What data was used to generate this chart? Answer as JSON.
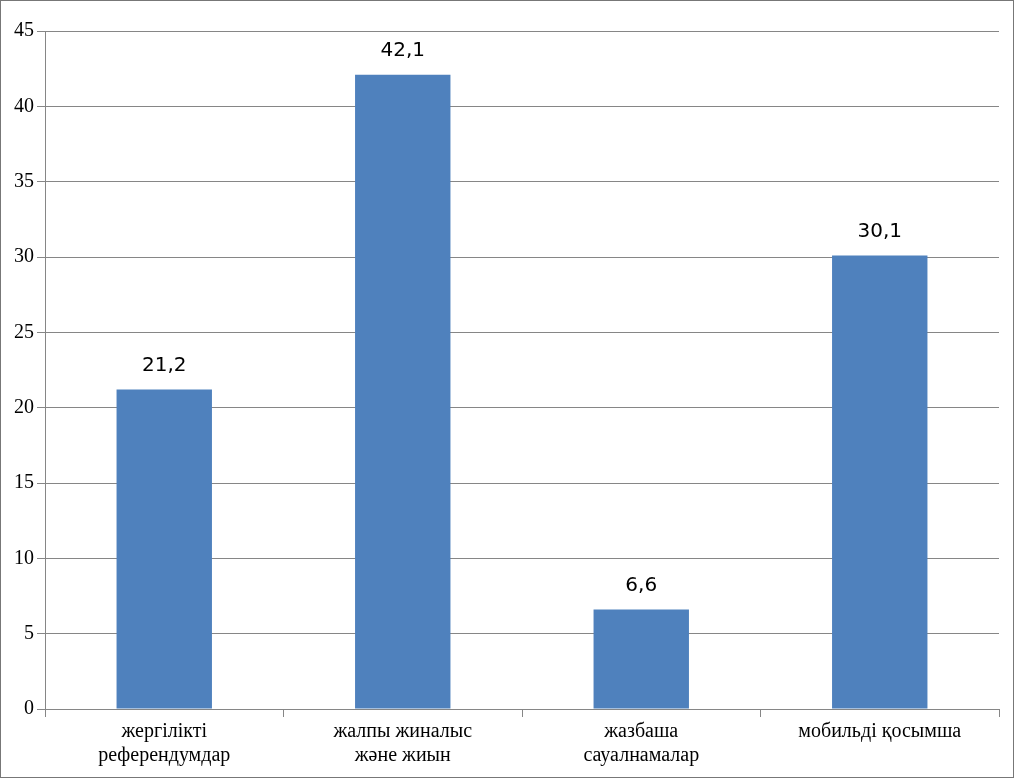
{
  "chart_data": {
    "type": "bar",
    "categories": [
      "жергілікті референдумдар",
      "жалпы жиналыс және жиын",
      "жазбаша сауалнамалар",
      "мобильді қосымша"
    ],
    "values": [
      21.2,
      42.1,
      6.6,
      30.1
    ],
    "value_labels": [
      "21,2",
      "42,1",
      "6,6",
      "30,1"
    ],
    "color": "#4f81bd",
    "ylim": [
      0,
      45
    ],
    "yticks": [
      0,
      5,
      10,
      15,
      20,
      25,
      30,
      35,
      40,
      45
    ],
    "grid": "y",
    "legend": false
  }
}
